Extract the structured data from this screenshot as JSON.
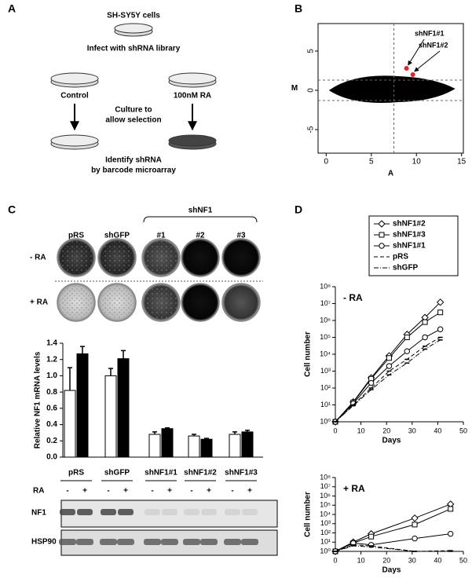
{
  "panel_labels": [
    "A",
    "B",
    "C",
    "D"
  ],
  "diagram": {
    "cells": "SH-SY5Y cells",
    "infect": "Infect with shRNA library",
    "control": "Control",
    "treated": "100nM RA",
    "culture": [
      "Culture to",
      "allow selection"
    ],
    "identify": [
      "Identify shRNA",
      "by barcode microarray"
    ]
  },
  "plates": {
    "group": "shNF1",
    "columns": [
      "pRS",
      "shGFP",
      "#1",
      "#2",
      "#3"
    ],
    "rows": [
      "- RA",
      "+ RA"
    ]
  },
  "blot": {
    "ra_label": "RA",
    "ra_signs": [
      "-",
      "+",
      "-",
      "+",
      "-",
      "+",
      "-",
      "+",
      "-",
      "+"
    ],
    "bands": [
      "NF1",
      "HSP90"
    ]
  },
  "chart_data": [
    {
      "type": "scatter",
      "xlabel": "A",
      "ylabel": "M",
      "xlim": [
        -0.9,
        15.2
      ],
      "ylim": [
        -8,
        8.5
      ],
      "xticks": [
        0,
        5,
        10,
        15
      ],
      "yticks": [
        -5,
        0,
        5
      ],
      "reference_x": [
        7.5
      ],
      "reference_y": [
        -1.3,
        1.3
      ],
      "annotations": [
        "shNF1#1",
        "shNF1#2"
      ],
      "series": [
        {
          "color": "#e8202a",
          "x": [
            8.9,
            9.6
          ],
          "values": [
            2.8,
            2.0
          ]
        }
      ]
    },
    {
      "type": "bar",
      "ylabel": "Relative NF1 mRNA levels",
      "categories": [
        "pRS",
        "shGFP",
        "shNF1#1",
        "shNF1#2",
        "shNF1#3"
      ],
      "ylim": [
        0,
        1.4
      ],
      "yticks": [
        {
          "value": 0,
          "label": "0.0"
        },
        0.2,
        0.4,
        0.6,
        0.8,
        {
          "value": 1,
          "label": "1.0"
        },
        1.2,
        1.4
      ],
      "series": [
        {
          "color": "#ffffff",
          "values": [
            0.82,
            1.0,
            0.28,
            0.26,
            0.28
          ],
          "errors": [
            0.28,
            0.09,
            0.03,
            0.02,
            0.03
          ]
        },
        {
          "color": "#000000",
          "values": [
            1.27,
            1.21,
            0.35,
            0.22,
            0.31
          ],
          "errors": [
            0.09,
            0.1,
            0.01,
            0.01,
            0.02
          ]
        }
      ]
    },
    {
      "type": "line",
      "title": "- RA",
      "xlabel": "Days",
      "ylabel": "Cell number",
      "log_y": true,
      "xlim": [
        0,
        50
      ],
      "xticks": [
        0,
        10,
        20,
        30,
        40,
        50
      ],
      "ylim": [
        1,
        100000000
      ],
      "yticks": [
        {
          "value": 1,
          "label": "10⁰"
        },
        {
          "value": 10,
          "label": "10¹"
        },
        {
          "value": 100,
          "label": "10²"
        },
        {
          "value": 1000,
          "label": "10³"
        },
        {
          "value": 10000,
          "label": "10⁴"
        },
        {
          "value": 100000,
          "label": "10⁵"
        },
        {
          "value": 1000000,
          "label": "10⁶"
        },
        {
          "value": 10000000,
          "label": "10⁷"
        },
        {
          "value": 100000000,
          "label": "10⁸"
        }
      ],
      "x": [
        0,
        7,
        14,
        21,
        28,
        35,
        41
      ],
      "series": [
        {
          "name": "shNF1#2",
          "color": "#000000",
          "marker": "diamond",
          "dash": "solid",
          "values": [
            1,
            15,
            400,
            8000,
            150000,
            1500000,
            12000000
          ]
        },
        {
          "name": "shNF1#3",
          "color": "#000000",
          "marker": "square",
          "dash": "solid",
          "values": [
            1,
            14,
            350,
            6000,
            100000,
            800000,
            3000000
          ]
        },
        {
          "name": "shNF1#1",
          "color": "#000000",
          "marker": "circle",
          "dash": "solid",
          "values": [
            1,
            12,
            200,
            2000,
            15000,
            100000,
            300000
          ]
        },
        {
          "name": "pRS",
          "color": "#000000",
          "marker": "none",
          "dash": "dashed",
          "values": [
            1,
            10,
            100,
            1000,
            5000,
            30000,
            100000
          ]
        },
        {
          "name": "shGFP",
          "color": "#000000",
          "marker": "none",
          "dash": "dashdot",
          "values": [
            1,
            9,
            80,
            600,
            3000,
            20000,
            70000
          ]
        }
      ]
    },
    {
      "type": "line",
      "title": "+ RA",
      "xlabel": "Days",
      "ylabel": "Cell number",
      "log_y": true,
      "xlim": [
        0,
        50
      ],
      "xticks": [
        0,
        10,
        20,
        30,
        40,
        50
      ],
      "ylim": [
        1,
        100000000
      ],
      "yticks": [
        {
          "value": 1,
          "label": "10⁰"
        },
        {
          "value": 10,
          "label": "10¹"
        },
        {
          "value": 100,
          "label": "10²"
        },
        {
          "value": 1000,
          "label": "10³"
        },
        {
          "value": 10000,
          "label": "10⁴"
        },
        {
          "value": 100000,
          "label": "10⁵"
        },
        {
          "value": 1000000,
          "label": "10⁶"
        },
        {
          "value": 10000000,
          "label": "10⁷"
        },
        {
          "value": 100000000,
          "label": "10⁸"
        }
      ],
      "x": [
        0,
        7,
        14,
        31,
        45
      ],
      "series": [
        {
          "color": "#000000",
          "marker": "diamond",
          "dash": "solid",
          "values": [
            1,
            10,
            80,
            4000,
            130000
          ]
        },
        {
          "color": "#000000",
          "marker": "square",
          "dash": "solid",
          "values": [
            1,
            8,
            40,
            800,
            40000
          ]
        },
        {
          "color": "#000000",
          "marker": "circle",
          "dash": "solid",
          "values": [
            1,
            8,
            5,
            25,
            80
          ]
        },
        {
          "color": "#000000",
          "marker": "none",
          "dash": "dashed",
          "values": [
            1,
            5,
            4,
            1,
            1.2
          ]
        },
        {
          "color": "#000000",
          "marker": "none",
          "dash": "dashdot",
          "values": [
            1,
            4,
            3,
            1,
            1
          ]
        }
      ]
    }
  ]
}
